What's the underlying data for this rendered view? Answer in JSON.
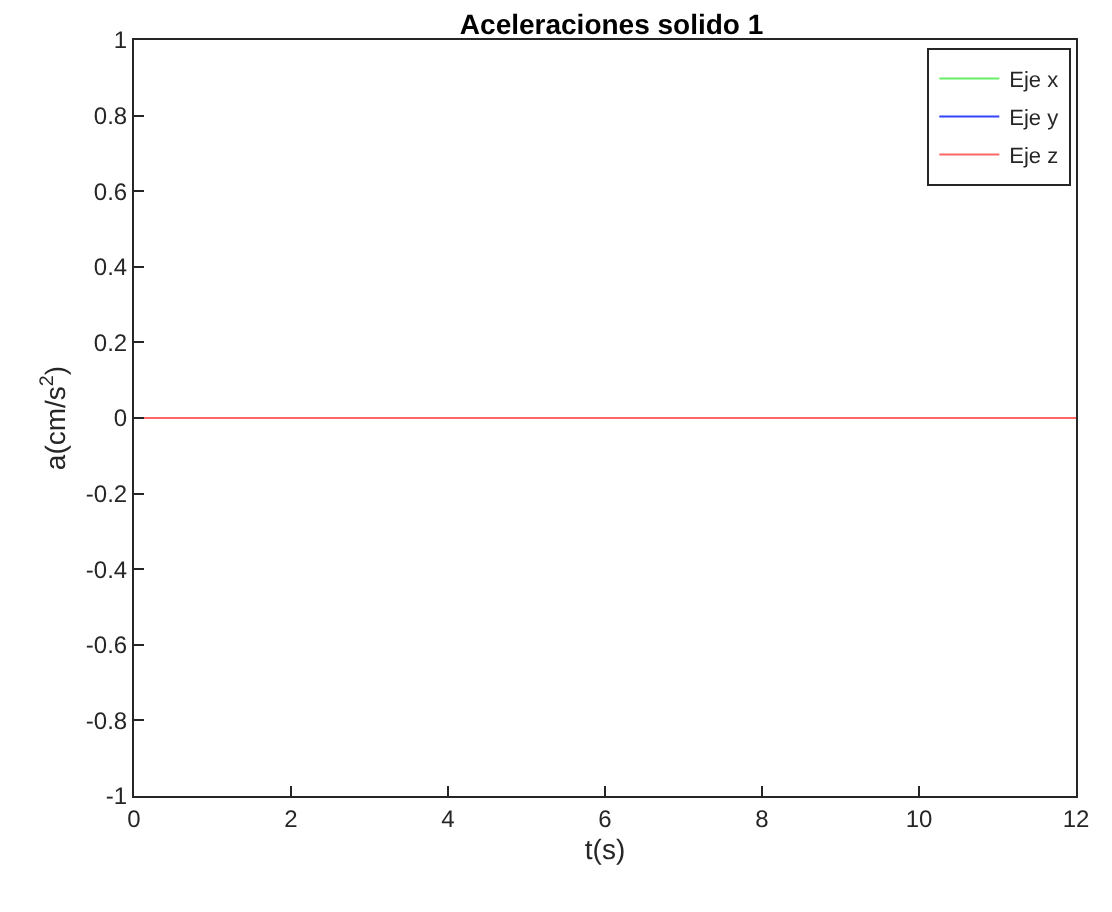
{
  "chart_data": {
    "type": "line",
    "title": "Aceleraciones solido 1",
    "xlabel": "t(s)",
    "ylabel": "a(cm/s$^{2}$)",
    "x": [
      0,
      12
    ],
    "series": [
      {
        "name": "Eje x",
        "color": "#66ee66",
        "values": [
          null,
          null
        ]
      },
      {
        "name": "Eje y",
        "color": "#3344ff",
        "values": [
          null,
          null
        ]
      },
      {
        "name": "Eje z",
        "color": "#ff6666",
        "values": [
          0,
          0
        ]
      }
    ],
    "xlim": [
      0,
      12
    ],
    "xticks": [
      0,
      2,
      4,
      6,
      8,
      10,
      12
    ],
    "ylim": [
      -1,
      1
    ],
    "yticks": [
      -1,
      -0.8,
      -0.6,
      -0.4,
      -0.2,
      0,
      0.2,
      0.4,
      0.6,
      0.8,
      1
    ],
    "legend": "top right",
    "marker": "none",
    "line_style": "solid"
  }
}
